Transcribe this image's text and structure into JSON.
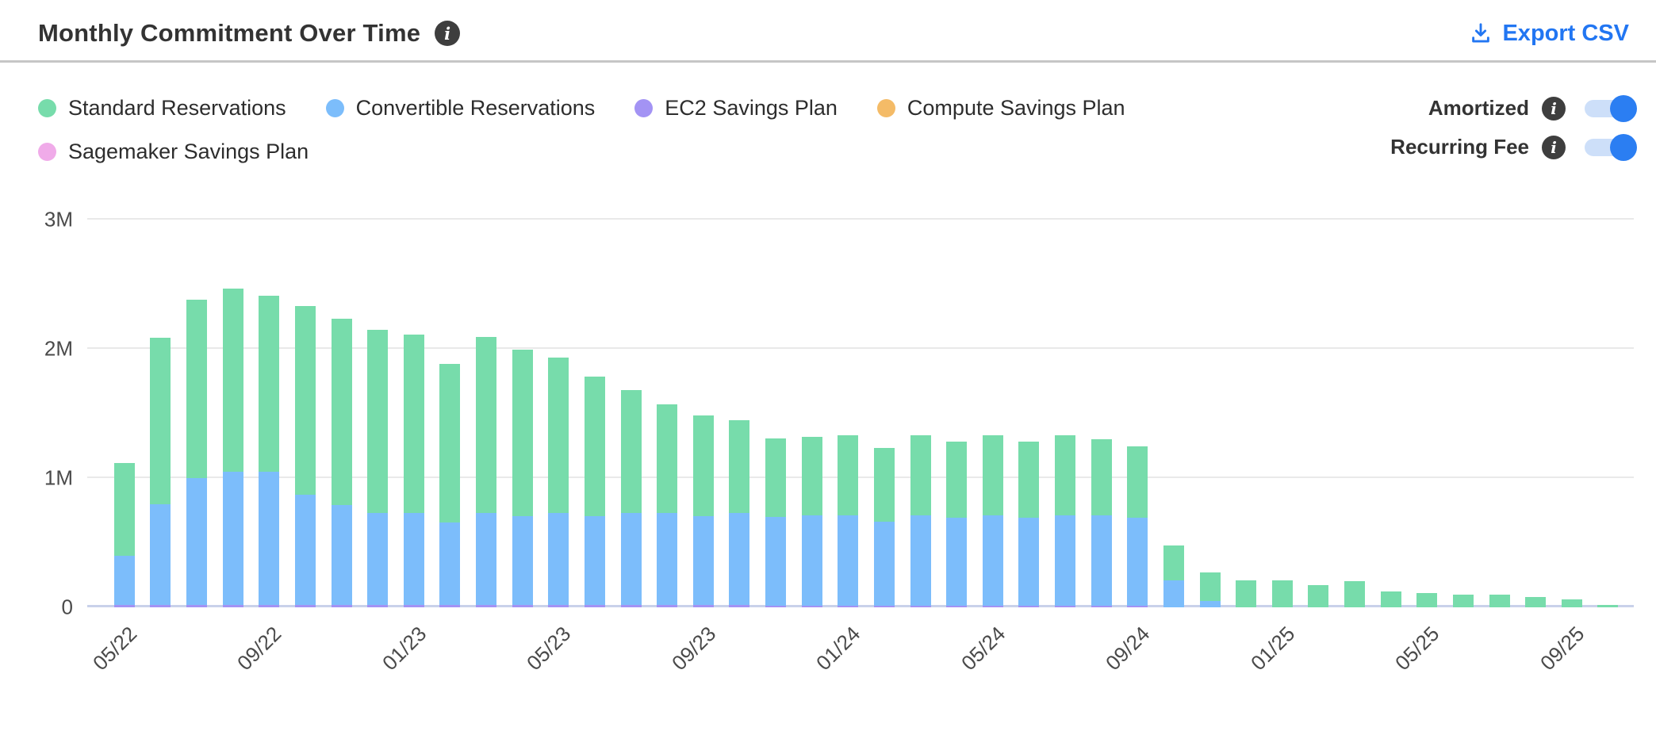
{
  "header": {
    "title": "Monthly Commitment Over Time",
    "export_label": "Export CSV"
  },
  "legend": {
    "items": [
      {
        "label": "Standard Reservations",
        "color": "#77dcab"
      },
      {
        "label": "Convertible Reservations",
        "color": "#7cbdfb"
      },
      {
        "label": "EC2 Savings Plan",
        "color": "#a393f4"
      },
      {
        "label": "Compute Savings Plan",
        "color": "#f4bb67"
      },
      {
        "label": "Sagemaker Savings Plan",
        "color": "#f0abe9"
      }
    ]
  },
  "toggles": {
    "items": [
      {
        "label": "Amortized",
        "on": true
      },
      {
        "label": "Recurring Fee",
        "on": true
      }
    ]
  },
  "colors": {
    "accent_blue": "#2b7ef2",
    "export_blue": "#2276f2",
    "divider": "#c6c6c6",
    "gridline": "#e9e9e9",
    "baseline": "#c9d1ea",
    "toggle_track": "#cddff9",
    "info_icon_bg": "#3e3e3e",
    "text_dark": "#333333",
    "axis_text": "#4a4a4a"
  },
  "chart_data": {
    "type": "bar",
    "stacked": true,
    "title": "Monthly Commitment Over Time",
    "xlabel": "",
    "ylabel": "",
    "unit": "millions",
    "ylim": [
      0,
      3
    ],
    "yticks": [
      "0",
      "1M",
      "2M",
      "3M"
    ],
    "ytick_values": [
      0,
      1,
      2,
      3
    ],
    "grid": true,
    "legend_position": "top-left",
    "x_tick_every": 4,
    "x_tick_labels": [
      "05/22",
      "09/22",
      "01/23",
      "05/23",
      "09/23",
      "01/24",
      "05/24",
      "09/24",
      "01/25",
      "05/25",
      "09/25"
    ],
    "categories": [
      "05/22",
      "06/22",
      "07/22",
      "08/22",
      "09/22",
      "10/22",
      "11/22",
      "12/22",
      "01/23",
      "02/23",
      "03/23",
      "04/23",
      "05/23",
      "06/23",
      "07/23",
      "08/23",
      "09/23",
      "10/23",
      "11/23",
      "12/23",
      "01/24",
      "02/24",
      "03/24",
      "04/24",
      "05/24",
      "06/24",
      "07/24",
      "08/24",
      "09/24",
      "10/24",
      "11/24",
      "12/24",
      "01/25",
      "02/25",
      "03/25",
      "04/25",
      "05/25",
      "06/25",
      "07/25",
      "08/25",
      "09/25",
      "10/25"
    ],
    "series": [
      {
        "name": "EC2 Savings Plan",
        "color": "#a393f4",
        "stack_position": "bottom",
        "values": [
          0.02,
          0.02,
          0.02,
          0.02,
          0.02,
          0.02,
          0.02,
          0.02,
          0.02,
          0.02,
          0.02,
          0.02,
          0.02,
          0.02,
          0.02,
          0.02,
          0.02,
          0.02,
          0.01,
          0.01,
          0.01,
          0.01,
          0.01,
          0.01,
          0.01,
          0.01,
          0.01,
          0.01,
          0.01,
          0,
          0,
          0,
          0,
          0,
          0,
          0,
          0,
          0,
          0,
          0,
          0,
          0
        ]
      },
      {
        "name": "Convertible Reservations",
        "color": "#7cbdfb",
        "stack_position": "middle",
        "values": [
          0.38,
          0.78,
          0.98,
          1.03,
          1.03,
          0.85,
          0.77,
          0.71,
          0.71,
          0.64,
          0.71,
          0.69,
          0.71,
          0.69,
          0.71,
          0.71,
          0.69,
          0.71,
          0.69,
          0.7,
          0.7,
          0.65,
          0.7,
          0.68,
          0.7,
          0.68,
          0.7,
          0.7,
          0.68,
          0.21,
          0.05,
          0,
          0,
          0,
          0,
          0,
          0,
          0,
          0,
          0,
          0,
          0
        ]
      },
      {
        "name": "Standard Reservations",
        "color": "#77dcab",
        "stack_position": "top",
        "values": [
          0.72,
          1.29,
          1.38,
          1.42,
          1.36,
          1.46,
          1.44,
          1.42,
          1.38,
          1.23,
          1.36,
          1.29,
          1.2,
          1.08,
          0.95,
          0.84,
          0.78,
          0.72,
          0.61,
          0.61,
          0.62,
          0.57,
          0.62,
          0.59,
          0.62,
          0.59,
          0.62,
          0.59,
          0.55,
          0.27,
          0.22,
          0.21,
          0.21,
          0.17,
          0.2,
          0.12,
          0.11,
          0.1,
          0.1,
          0.08,
          0.06,
          0.02
        ]
      },
      {
        "name": "Compute Savings Plan",
        "color": "#f4bb67",
        "stack_position": "top",
        "values": [
          0,
          0,
          0,
          0,
          0,
          0,
          0,
          0,
          0,
          0,
          0,
          0,
          0,
          0,
          0,
          0,
          0,
          0,
          0,
          0,
          0,
          0,
          0,
          0,
          0,
          0,
          0,
          0,
          0,
          0,
          0,
          0,
          0,
          0,
          0,
          0,
          0,
          0,
          0,
          0,
          0,
          0
        ]
      },
      {
        "name": "Sagemaker Savings Plan",
        "color": "#f0abe9",
        "stack_position": "top",
        "values": [
          0,
          0,
          0,
          0,
          0,
          0,
          0,
          0,
          0,
          0,
          0,
          0,
          0,
          0,
          0,
          0,
          0,
          0,
          0,
          0,
          0,
          0,
          0,
          0,
          0,
          0,
          0,
          0,
          0,
          0,
          0,
          0,
          0,
          0,
          0,
          0,
          0,
          0,
          0,
          0,
          0,
          0
        ]
      }
    ]
  }
}
